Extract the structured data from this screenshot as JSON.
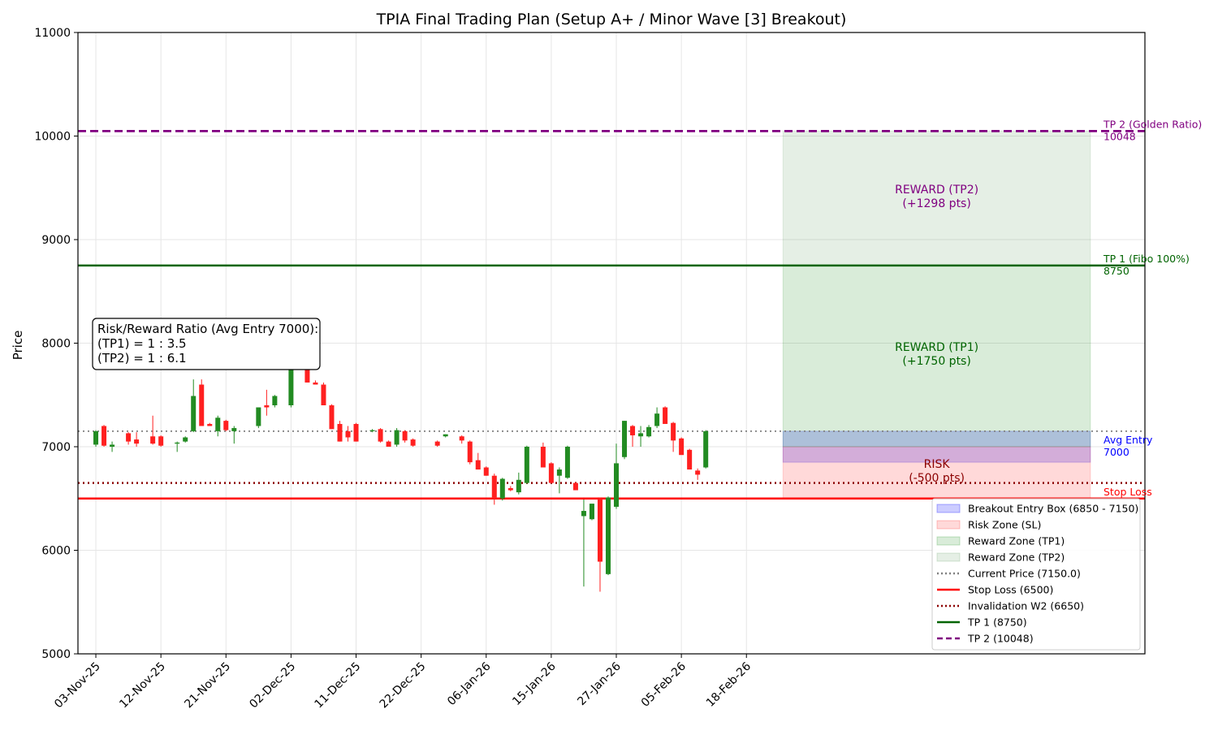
{
  "chart_data": {
    "type": "candlestick",
    "title": "TPIA Final Trading Plan (Setup A+ / Minor Wave [3] Breakout)",
    "ylabel": "Price",
    "xlabel": "",
    "ylim": [
      5000,
      11000
    ],
    "yticks": [
      5000,
      6000,
      7000,
      8000,
      9000,
      10000,
      11000
    ],
    "grid": true,
    "legend_position": "lower-right",
    "x_tick_labels": [
      "03-Nov-25",
      "12-Nov-25",
      "21-Nov-25",
      "02-Dec-25",
      "11-Dec-25",
      "22-Dec-25",
      "06-Jan-26",
      "15-Jan-26",
      "27-Jan-26",
      "05-Feb-26",
      "18-Feb-26"
    ],
    "x_tick_positions": [
      0,
      8,
      16,
      24,
      32,
      40,
      48,
      56,
      64,
      72,
      80
    ],
    "x_range": [
      -2.2,
      129
    ],
    "colors": {
      "up": "#228B22",
      "down": "#FF2020"
    },
    "candles": [
      {
        "i": 0,
        "o": 7020,
        "h": 7160,
        "l": 7000,
        "c": 7150
      },
      {
        "i": 1,
        "o": 7200,
        "h": 7210,
        "l": 7000,
        "c": 7010
      },
      {
        "i": 2,
        "o": 7000,
        "h": 7050,
        "l": 6950,
        "c": 7020
      },
      {
        "i": 4,
        "o": 7130,
        "h": 7140,
        "l": 7020,
        "c": 7050
      },
      {
        "i": 5,
        "o": 7070,
        "h": 7140,
        "l": 7000,
        "c": 7030
      },
      {
        "i": 7,
        "o": 7100,
        "h": 7300,
        "l": 7020,
        "c": 7030
      },
      {
        "i": 8,
        "o": 7100,
        "h": 7110,
        "l": 7000,
        "c": 7010
      },
      {
        "i": 10,
        "o": 7030,
        "h": 7050,
        "l": 6950,
        "c": 7040
      },
      {
        "i": 11,
        "o": 7050,
        "h": 7100,
        "l": 7040,
        "c": 7090
      },
      {
        "i": 12,
        "o": 7150,
        "h": 7650,
        "l": 7140,
        "c": 7490
      },
      {
        "i": 13,
        "o": 7600,
        "h": 7650,
        "l": 7200,
        "c": 7200
      },
      {
        "i": 14,
        "o": 7220,
        "h": 7230,
        "l": 7200,
        "c": 7200
      },
      {
        "i": 15,
        "o": 7150,
        "h": 7300,
        "l": 7100,
        "c": 7280
      },
      {
        "i": 16,
        "o": 7250,
        "h": 7260,
        "l": 7150,
        "c": 7160
      },
      {
        "i": 17,
        "o": 7150,
        "h": 7200,
        "l": 7030,
        "c": 7180
      },
      {
        "i": 20,
        "o": 7200,
        "h": 7380,
        "l": 7180,
        "c": 7380
      },
      {
        "i": 21,
        "o": 7400,
        "h": 7550,
        "l": 7300,
        "c": 7380
      },
      {
        "i": 22,
        "o": 7400,
        "h": 7500,
        "l": 7380,
        "c": 7490
      },
      {
        "i": 24,
        "o": 7400,
        "h": 7900,
        "l": 7380,
        "c": 7800
      },
      {
        "i": 25,
        "o": 7820,
        "h": 7830,
        "l": 7800,
        "c": 7800
      },
      {
        "i": 26,
        "o": 7800,
        "h": 7830,
        "l": 7620,
        "c": 7620
      },
      {
        "i": 27,
        "o": 7620,
        "h": 7640,
        "l": 7600,
        "c": 7600
      },
      {
        "i": 28,
        "o": 7600,
        "h": 7620,
        "l": 7400,
        "c": 7400
      },
      {
        "i": 29,
        "o": 7400,
        "h": 7410,
        "l": 7170,
        "c": 7170
      },
      {
        "i": 30,
        "o": 7220,
        "h": 7250,
        "l": 7050,
        "c": 7050
      },
      {
        "i": 31,
        "o": 7150,
        "h": 7200,
        "l": 7050,
        "c": 7090
      },
      {
        "i": 32,
        "o": 7220,
        "h": 7230,
        "l": 7050,
        "c": 7050
      },
      {
        "i": 34,
        "o": 7150,
        "h": 7170,
        "l": 7140,
        "c": 7160
      },
      {
        "i": 35,
        "o": 7170,
        "h": 7180,
        "l": 7040,
        "c": 7050
      },
      {
        "i": 36,
        "o": 7050,
        "h": 7060,
        "l": 7000,
        "c": 7000
      },
      {
        "i": 37,
        "o": 7020,
        "h": 7180,
        "l": 7000,
        "c": 7160
      },
      {
        "i": 38,
        "o": 7150,
        "h": 7160,
        "l": 7040,
        "c": 7060
      },
      {
        "i": 39,
        "o": 7070,
        "h": 7080,
        "l": 7000,
        "c": 7010
      },
      {
        "i": 42,
        "o": 7050,
        "h": 7060,
        "l": 7000,
        "c": 7010
      },
      {
        "i": 43,
        "o": 7100,
        "h": 7120,
        "l": 7090,
        "c": 7120
      },
      {
        "i": 45,
        "o": 7100,
        "h": 7110,
        "l": 7030,
        "c": 7060
      },
      {
        "i": 46,
        "o": 7050,
        "h": 7060,
        "l": 6830,
        "c": 6850
      },
      {
        "i": 47,
        "o": 6870,
        "h": 6940,
        "l": 6780,
        "c": 6780
      },
      {
        "i": 48,
        "o": 6800,
        "h": 6810,
        "l": 6720,
        "c": 6720
      },
      {
        "i": 49,
        "o": 6720,
        "h": 6740,
        "l": 6440,
        "c": 6500
      },
      {
        "i": 50,
        "o": 6500,
        "h": 6700,
        "l": 6480,
        "c": 6690
      },
      {
        "i": 51,
        "o": 6600,
        "h": 6620,
        "l": 6570,
        "c": 6580
      },
      {
        "i": 52,
        "o": 6560,
        "h": 6750,
        "l": 6540,
        "c": 6680
      },
      {
        "i": 53,
        "o": 6650,
        "h": 7010,
        "l": 6640,
        "c": 7000
      },
      {
        "i": 55,
        "o": 7000,
        "h": 7040,
        "l": 6800,
        "c": 6800
      },
      {
        "i": 56,
        "o": 6840,
        "h": 6850,
        "l": 6650,
        "c": 6650
      },
      {
        "i": 57,
        "o": 6720,
        "h": 6800,
        "l": 6550,
        "c": 6780
      },
      {
        "i": 58,
        "o": 6700,
        "h": 7010,
        "l": 6690,
        "c": 7000
      },
      {
        "i": 59,
        "o": 6650,
        "h": 6660,
        "l": 6580,
        "c": 6580
      },
      {
        "i": 60,
        "o": 6330,
        "h": 6490,
        "l": 5650,
        "c": 6380
      },
      {
        "i": 61,
        "o": 6300,
        "h": 6450,
        "l": 6290,
        "c": 6450
      },
      {
        "i": 62,
        "o": 6500,
        "h": 6510,
        "l": 5600,
        "c": 5890
      },
      {
        "i": 63,
        "o": 5770,
        "h": 6520,
        "l": 5760,
        "c": 6510
      },
      {
        "i": 64,
        "o": 6420,
        "h": 7030,
        "l": 6400,
        "c": 6840
      },
      {
        "i": 65,
        "o": 6900,
        "h": 7250,
        "l": 6880,
        "c": 7250
      },
      {
        "i": 66,
        "o": 7200,
        "h": 7210,
        "l": 7000,
        "c": 7110
      },
      {
        "i": 67,
        "o": 7100,
        "h": 7200,
        "l": 7000,
        "c": 7130
      },
      {
        "i": 68,
        "o": 7100,
        "h": 7210,
        "l": 7090,
        "c": 7190
      },
      {
        "i": 69,
        "o": 7200,
        "h": 7380,
        "l": 7180,
        "c": 7320
      },
      {
        "i": 70,
        "o": 7380,
        "h": 7390,
        "l": 7220,
        "c": 7220
      },
      {
        "i": 71,
        "o": 7230,
        "h": 7240,
        "l": 6950,
        "c": 7060
      },
      {
        "i": 72,
        "o": 7080,
        "h": 7090,
        "l": 6930,
        "c": 6920
      },
      {
        "i": 73,
        "o": 6970,
        "h": 6980,
        "l": 6780,
        "c": 6780
      },
      {
        "i": 74,
        "o": 6770,
        "h": 6790,
        "l": 6680,
        "c": 6730
      },
      {
        "i": 75,
        "o": 6800,
        "h": 7160,
        "l": 6790,
        "c": 7150
      }
    ],
    "zones": [
      {
        "name": "Breakout Entry Box (6850 - 7150)",
        "y0": 6850,
        "y1": 7150,
        "x0": 84.5,
        "x1": 122.3,
        "color": "#0000FF",
        "alpha": 0.2
      },
      {
        "name": "Risk Zone (SL)",
        "y0": 6500,
        "y1": 7000,
        "x0": 84.5,
        "x1": 122.3,
        "color": "#FF0000",
        "alpha": 0.15
      },
      {
        "name": "Reward Zone (TP1)",
        "y0": 7000,
        "y1": 8750,
        "x0": 84.5,
        "x1": 122.3,
        "color": "#008000",
        "alpha": 0.15
      },
      {
        "name": "Reward Zone (TP2)",
        "y0": 8750,
        "y1": 10048,
        "x0": 84.5,
        "x1": 122.3,
        "color": "#006400",
        "alpha": 0.1
      }
    ],
    "hlines": [
      {
        "name": "Current Price (7150.0)",
        "y": 7150,
        "color": "#808080",
        "style": "dotted",
        "width": 1.8
      },
      {
        "name": "Stop Loss (6500)",
        "y": 6500,
        "color": "#FF0000",
        "style": "solid",
        "width": 2.6
      },
      {
        "name": "Invalidation W2 (6650)",
        "y": 6650,
        "color": "#8B0000",
        "style": "dotted",
        "width": 2.6
      },
      {
        "name": "TP 1 (8750)",
        "y": 8750,
        "color": "#006400",
        "style": "solid",
        "width": 2.6
      },
      {
        "name": "TP 2 (10048)",
        "y": 10048,
        "color": "#800080",
        "style": "dashed",
        "width": 2.8
      }
    ],
    "annotations": [
      {
        "line1": "REWARD (TP2)",
        "line2": "(+1298 pts)",
        "y": 9400,
        "color": "#800080"
      },
      {
        "line1": "REWARD (TP1)",
        "line2": "(+1750 pts)",
        "y": 7880,
        "color": "#006400"
      },
      {
        "line1": "RISK",
        "line2": "(-500 pts)",
        "y": 6750,
        "color": "#8B0000"
      }
    ],
    "right_labels": [
      {
        "line1": "TP 2 (Golden Ratio)",
        "line2": "10048",
        "y": 10048,
        "color": "#800080"
      },
      {
        "line1": "TP 1 (Fibo 100%)",
        "line2": "8750",
        "y": 8750,
        "color": "#006400"
      },
      {
        "line1": "Avg Entry",
        "line2": "7000",
        "y": 7000,
        "color": "#0000FF"
      },
      {
        "line1": "Stop Loss",
        "line2": "",
        "y": 6500,
        "color": "#FF0000"
      }
    ],
    "info_box": {
      "line1": "Risk/Reward Ratio (Avg Entry 7000):",
      "line2": "(TP1) = 1 : 3.5",
      "line3": "(TP2) = 1 : 6.1"
    },
    "legend": [
      {
        "label": "Breakout Entry Box (6850 - 7150)",
        "kind": "patch",
        "color": "#0000FF",
        "alpha": 0.2
      },
      {
        "label": "Risk Zone (SL)",
        "kind": "patch",
        "color": "#FF0000",
        "alpha": 0.15
      },
      {
        "label": "Reward Zone (TP1)",
        "kind": "patch",
        "color": "#008000",
        "alpha": 0.15
      },
      {
        "label": "Reward Zone (TP2)",
        "kind": "patch",
        "color": "#006400",
        "alpha": 0.1
      },
      {
        "label": "Current Price (7150.0)",
        "kind": "line",
        "color": "#808080",
        "style": "dotted"
      },
      {
        "label": "Stop Loss (6500)",
        "kind": "line",
        "color": "#FF0000",
        "style": "solid"
      },
      {
        "label": "Invalidation W2 (6650)",
        "kind": "line",
        "color": "#8B0000",
        "style": "dotted"
      },
      {
        "label": "TP 1 (8750)",
        "kind": "line",
        "color": "#006400",
        "style": "solid"
      },
      {
        "label": "TP 2 (10048)",
        "kind": "line",
        "color": "#800080",
        "style": "dashed"
      }
    ]
  }
}
